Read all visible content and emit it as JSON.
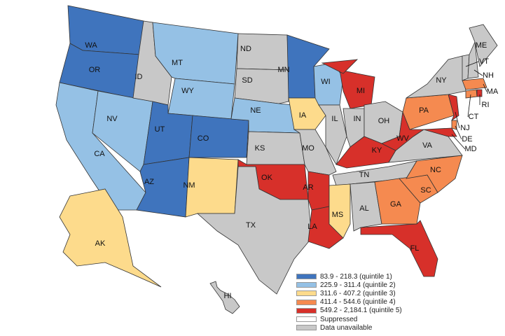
{
  "colors": {
    "quintile_1": "#3f74bd",
    "quintile_2": "#95c1e5",
    "quintile_3": "#fddb8c",
    "quintile_4": "#f58a50",
    "quintile_5": "#d7302a",
    "suppressed": "#ffffff",
    "unavailable": "#c8c8c8",
    "border": "#333333"
  },
  "legend": [
    {
      "key": "quintile_1",
      "label": "83.9 - 218.3 (quintile 1)"
    },
    {
      "key": "quintile_2",
      "label": "225.9 - 311.4 (quintile 2)"
    },
    {
      "key": "quintile_3",
      "label": "311.6 - 407.2 (quintile 3)"
    },
    {
      "key": "quintile_4",
      "label": "411.4 - 544.6 (quintile 4)"
    },
    {
      "key": "quintile_5",
      "label": "549.2 - 2,184.1 (quintile 5)"
    },
    {
      "key": "suppressed",
      "label": "Suppressed"
    },
    {
      "key": "unavailable",
      "label": "Data unavailable"
    }
  ],
  "states": [
    {
      "abbr": "WA",
      "class": "quintile_1"
    },
    {
      "abbr": "OR",
      "class": "quintile_1"
    },
    {
      "abbr": "CA",
      "class": "quintile_2"
    },
    {
      "abbr": "NV",
      "class": "quintile_2"
    },
    {
      "abbr": "ID",
      "class": "unavailable"
    },
    {
      "abbr": "MT",
      "class": "quintile_2"
    },
    {
      "abbr": "WY",
      "class": "quintile_2"
    },
    {
      "abbr": "UT",
      "class": "quintile_1"
    },
    {
      "abbr": "CO",
      "class": "quintile_1"
    },
    {
      "abbr": "AZ",
      "class": "quintile_1"
    },
    {
      "abbr": "NM",
      "class": "quintile_3"
    },
    {
      "abbr": "ND",
      "class": "unavailable"
    },
    {
      "abbr": "SD",
      "class": "unavailable"
    },
    {
      "abbr": "NE",
      "class": "quintile_2"
    },
    {
      "abbr": "KS",
      "class": "unavailable"
    },
    {
      "abbr": "OK",
      "class": "quintile_5"
    },
    {
      "abbr": "TX",
      "class": "unavailable"
    },
    {
      "abbr": "MN",
      "class": "quintile_1"
    },
    {
      "abbr": "IA",
      "class": "quintile_3"
    },
    {
      "abbr": "MO",
      "class": "unavailable"
    },
    {
      "abbr": "AR",
      "class": "quintile_5"
    },
    {
      "abbr": "LA",
      "class": "quintile_5"
    },
    {
      "abbr": "WI",
      "class": "quintile_2"
    },
    {
      "abbr": "IL",
      "class": "unavailable"
    },
    {
      "abbr": "MI",
      "class": "quintile_5"
    },
    {
      "abbr": "IN",
      "class": "unavailable"
    },
    {
      "abbr": "OH",
      "class": "unavailable"
    },
    {
      "abbr": "KY",
      "class": "quintile_5"
    },
    {
      "abbr": "TN",
      "class": "unavailable"
    },
    {
      "abbr": "MS",
      "class": "quintile_3"
    },
    {
      "abbr": "AL",
      "class": "unavailable"
    },
    {
      "abbr": "GA",
      "class": "quintile_4"
    },
    {
      "abbr": "FL",
      "class": "quintile_5"
    },
    {
      "abbr": "SC",
      "class": "quintile_4"
    },
    {
      "abbr": "NC",
      "class": "quintile_4"
    },
    {
      "abbr": "VA",
      "class": "unavailable"
    },
    {
      "abbr": "WV",
      "class": "quintile_5"
    },
    {
      "abbr": "PA",
      "class": "quintile_4"
    },
    {
      "abbr": "NY",
      "class": "unavailable"
    },
    {
      "abbr": "ME",
      "class": "unavailable"
    },
    {
      "abbr": "VT",
      "class": "unavailable"
    },
    {
      "abbr": "NH",
      "class": "unavailable"
    },
    {
      "abbr": "MA",
      "class": "quintile_4"
    },
    {
      "abbr": "RI",
      "class": "quintile_5"
    },
    {
      "abbr": "CT",
      "class": "quintile_4"
    },
    {
      "abbr": "NJ",
      "class": "quintile_5"
    },
    {
      "abbr": "DE",
      "class": "quintile_4"
    },
    {
      "abbr": "MD",
      "class": "quintile_5"
    },
    {
      "abbr": "AK",
      "class": "quintile_3"
    },
    {
      "abbr": "HI",
      "class": "unavailable"
    }
  ]
}
